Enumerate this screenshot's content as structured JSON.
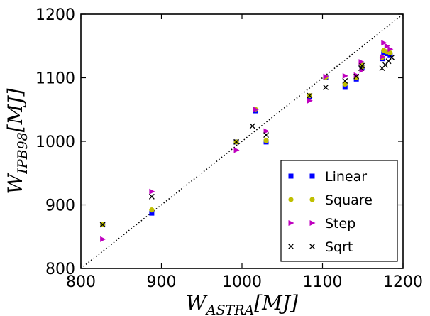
{
  "chart_data": {
    "type": "scatter",
    "xlabel": "W_{ASTRA}[MJ]",
    "ylabel": "W_{IPB98}[MJ]",
    "xlim": [
      800,
      1200
    ],
    "ylim": [
      800,
      1200
    ],
    "xticks": [
      "800",
      "900",
      "1000",
      "1100",
      "1200"
    ],
    "yticks": [
      "800",
      "900",
      "1000",
      "1100",
      "1200"
    ],
    "legend_position": "lower-right",
    "reference_line": "y = x (dotted)",
    "series": [
      {
        "name": "Linear",
        "marker": "square",
        "color": "#0000ff",
        "points": [
          [
            827,
            869
          ],
          [
            888,
            887
          ],
          [
            993,
            999
          ],
          [
            1017,
            1048
          ],
          [
            1030,
            999
          ],
          [
            1084,
            1070
          ],
          [
            1104,
            1100
          ],
          [
            1128,
            1085
          ],
          [
            1142,
            1098
          ],
          [
            1148,
            1122
          ],
          [
            1149,
            1116
          ],
          [
            1174,
            1130
          ],
          [
            1176,
            1140
          ],
          [
            1180,
            1138
          ],
          [
            1184,
            1136
          ]
        ]
      },
      {
        "name": "Square",
        "marker": "circle",
        "color": "#bfbf00",
        "points": [
          [
            827,
            869
          ],
          [
            888,
            892
          ],
          [
            993,
            999
          ],
          [
            1017,
            1050
          ],
          [
            1030,
            1001
          ],
          [
            1084,
            1072
          ],
          [
            1104,
            1101
          ],
          [
            1128,
            1090
          ],
          [
            1142,
            1100
          ],
          [
            1148,
            1122
          ],
          [
            1149,
            1117
          ],
          [
            1174,
            1132
          ],
          [
            1176,
            1143
          ],
          [
            1180,
            1141
          ],
          [
            1184,
            1139
          ]
        ]
      },
      {
        "name": "Step",
        "marker": "triangle-right",
        "color": "#bf00bf",
        "points": [
          [
            827,
            846
          ],
          [
            888,
            921
          ],
          [
            993,
            986
          ],
          [
            1017,
            1050
          ],
          [
            1030,
            1016
          ],
          [
            1084,
            1064
          ],
          [
            1104,
            1102
          ],
          [
            1128,
            1103
          ],
          [
            1142,
            1104
          ],
          [
            1148,
            1125
          ],
          [
            1149,
            1112
          ],
          [
            1174,
            1133
          ],
          [
            1176,
            1155
          ],
          [
            1180,
            1150
          ],
          [
            1184,
            1145
          ]
        ]
      },
      {
        "name": "Sqrt",
        "marker": "x",
        "color": "#000000",
        "points": [
          [
            827,
            869
          ],
          [
            888,
            913
          ],
          [
            993,
            999
          ],
          [
            1013,
            1024
          ],
          [
            1030,
            1010
          ],
          [
            1084,
            1072
          ],
          [
            1104,
            1085
          ],
          [
            1128,
            1095
          ],
          [
            1142,
            1102
          ],
          [
            1148,
            1115
          ],
          [
            1149,
            1119
          ],
          [
            1174,
            1115
          ],
          [
            1178,
            1120
          ],
          [
            1182,
            1126
          ],
          [
            1186,
            1132
          ]
        ]
      }
    ]
  }
}
